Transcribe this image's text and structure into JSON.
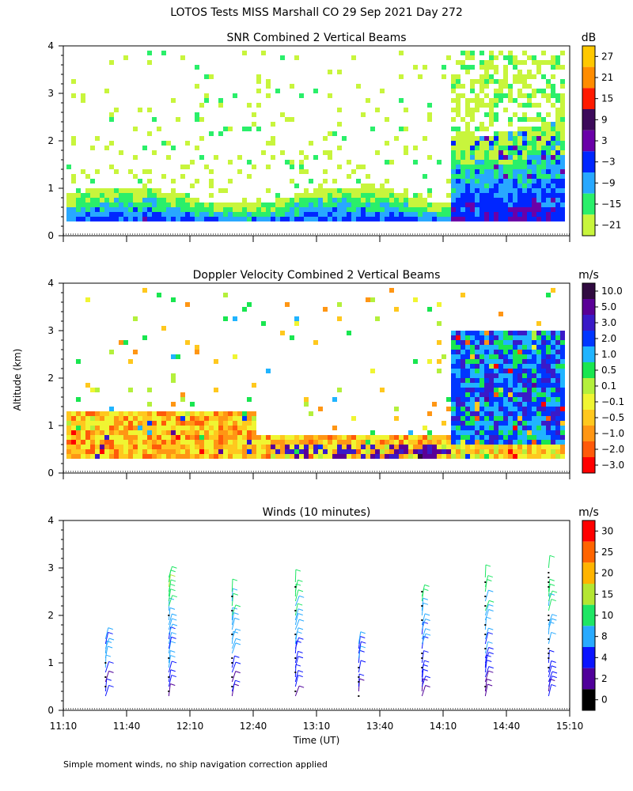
{
  "figure": {
    "title": "LOTOS Tests MISS Marshall CO  29 Sep 2021 Day 272",
    "ylabel": "Altitude (km)",
    "xlabel": "Time (UT)",
    "x_ticks": [
      "11:10",
      "11:40",
      "12:10",
      "12:40",
      "13:10",
      "13:40",
      "14:10",
      "14:40",
      "15:10"
    ],
    "footnote": "Simple moment winds, no ship navigation correction applied"
  },
  "chart_data": [
    {
      "type": "heatmap",
      "title": "SNR Combined 2 Vertical Beams",
      "x_range": [
        "11:10",
        "15:10"
      ],
      "ylim": [
        0,
        4
      ],
      "y_ticks": [
        0,
        1,
        2,
        3,
        4
      ],
      "colorbar": {
        "unit": "dB",
        "levels": [
          "27",
          "21",
          "15",
          "9",
          "3",
          "−3",
          "−9",
          "−15",
          "−21"
        ],
        "colors": [
          "#ffc800",
          "#ff8c00",
          "#ff1a00",
          "#3c0a5a",
          "#6a00a8",
          "#0026ff",
          "#28a8ff",
          "#2aef6a",
          "#c8f53c"
        ]
      }
    },
    {
      "type": "heatmap",
      "title": "Doppler Velocity Combined 2 Vertical Beams",
      "x_range": [
        "11:10",
        "15:10"
      ],
      "ylim": [
        0,
        4
      ],
      "y_ticks": [
        0,
        1,
        2,
        3,
        4
      ],
      "colorbar": {
        "unit": "m/s",
        "levels": [
          "10.0",
          "5.0",
          "3.0",
          "2.0",
          "1.0",
          "0.5",
          "0.1",
          "−0.1",
          "−0.5",
          "−1.0",
          "−2.0",
          "−3.0"
        ],
        "colors": [
          "#300a40",
          "#5a0096",
          "#3a1ac8",
          "#0036ff",
          "#20b4ff",
          "#19e650",
          "#b4f03c",
          "#f0f532",
          "#ffc81e",
          "#ff9614",
          "#ff5a0a",
          "#ff0000"
        ]
      }
    },
    {
      "type": "wind_barbs",
      "title": "Winds (10 minutes)",
      "x_range": [
        "11:10",
        "15:10"
      ],
      "ylim": [
        0,
        4
      ],
      "y_ticks": [
        0,
        1,
        2,
        3,
        4
      ],
      "colorbar": {
        "unit": "m/s",
        "levels": [
          "30",
          "25",
          "20",
          "15",
          "10",
          "8",
          "4",
          "2",
          "0"
        ],
        "colors": [
          "#ff0000",
          "#ff6400",
          "#ffb400",
          "#b4e632",
          "#1ee664",
          "#28aaff",
          "#0a14ff",
          "#50009a",
          "#000000"
        ]
      },
      "profiles": [
        {
          "time": "11:30",
          "alt_min": 0.3,
          "alt_max": 1.6
        },
        {
          "time": "12:00",
          "alt_min": 0.3,
          "alt_max": 2.9
        },
        {
          "time": "12:30",
          "alt_min": 0.3,
          "alt_max": 2.6
        },
        {
          "time": "13:00",
          "alt_min": 0.3,
          "alt_max": 2.8
        },
        {
          "time": "13:30",
          "alt_min": 0.3,
          "alt_max": 1.5
        },
        {
          "time": "14:00",
          "alt_min": 0.3,
          "alt_max": 2.6
        },
        {
          "time": "14:30",
          "alt_min": 0.3,
          "alt_max": 2.9
        },
        {
          "time": "15:00",
          "alt_min": 0.3,
          "alt_max": 3.1
        }
      ]
    }
  ]
}
